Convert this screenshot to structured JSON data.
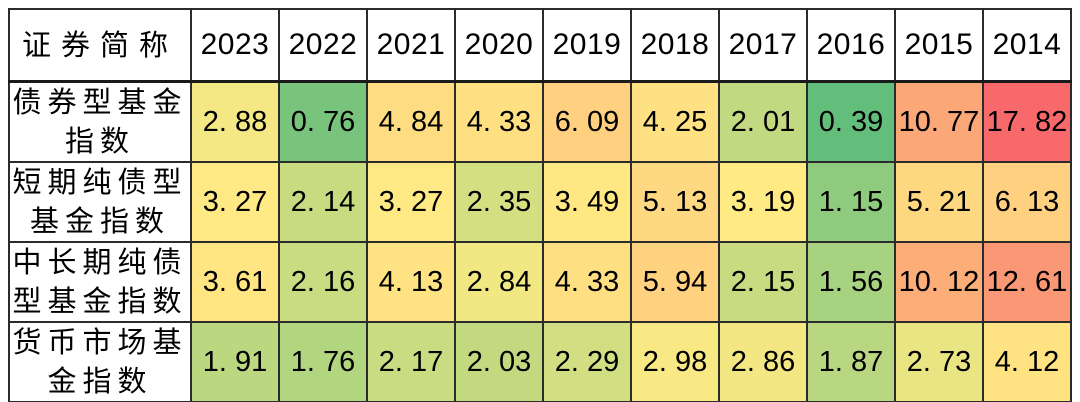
{
  "chart_data": {
    "type": "heatmap",
    "title": "",
    "corner_label": "证券简称",
    "categories": [
      "2023",
      "2022",
      "2021",
      "2020",
      "2019",
      "2018",
      "2017",
      "2016",
      "2015",
      "2014"
    ],
    "series": [
      {
        "name": "债券型基金指数",
        "values": [
          2.88,
          0.76,
          4.84,
          4.33,
          6.09,
          4.25,
          2.01,
          0.39,
          10.77,
          17.82
        ]
      },
      {
        "name": "短期纯债型基金指数",
        "values": [
          3.27,
          2.14,
          3.27,
          2.35,
          3.49,
          5.13,
          3.19,
          1.15,
          5.21,
          6.13
        ]
      },
      {
        "name": "中长期纯债型基金指数",
        "values": [
          3.61,
          2.16,
          4.13,
          2.84,
          4.33,
          5.94,
          2.15,
          1.56,
          10.12,
          12.61
        ]
      },
      {
        "name": "货币市场基金指数",
        "values": [
          1.91,
          1.76,
          2.17,
          2.03,
          2.29,
          2.98,
          2.86,
          1.87,
          2.73,
          4.12
        ]
      }
    ],
    "colorscale": {
      "min_value": 0.39,
      "mid_value": 3.085,
      "max_value": 17.82,
      "min_color": "#63BE7B",
      "mid_color": "#FFEB84",
      "max_color": "#F8696B"
    },
    "layout": {
      "grid": "on",
      "border_color": "#2b2b2b",
      "header_background": "#ffffff",
      "label_background": "#ffffff"
    }
  }
}
